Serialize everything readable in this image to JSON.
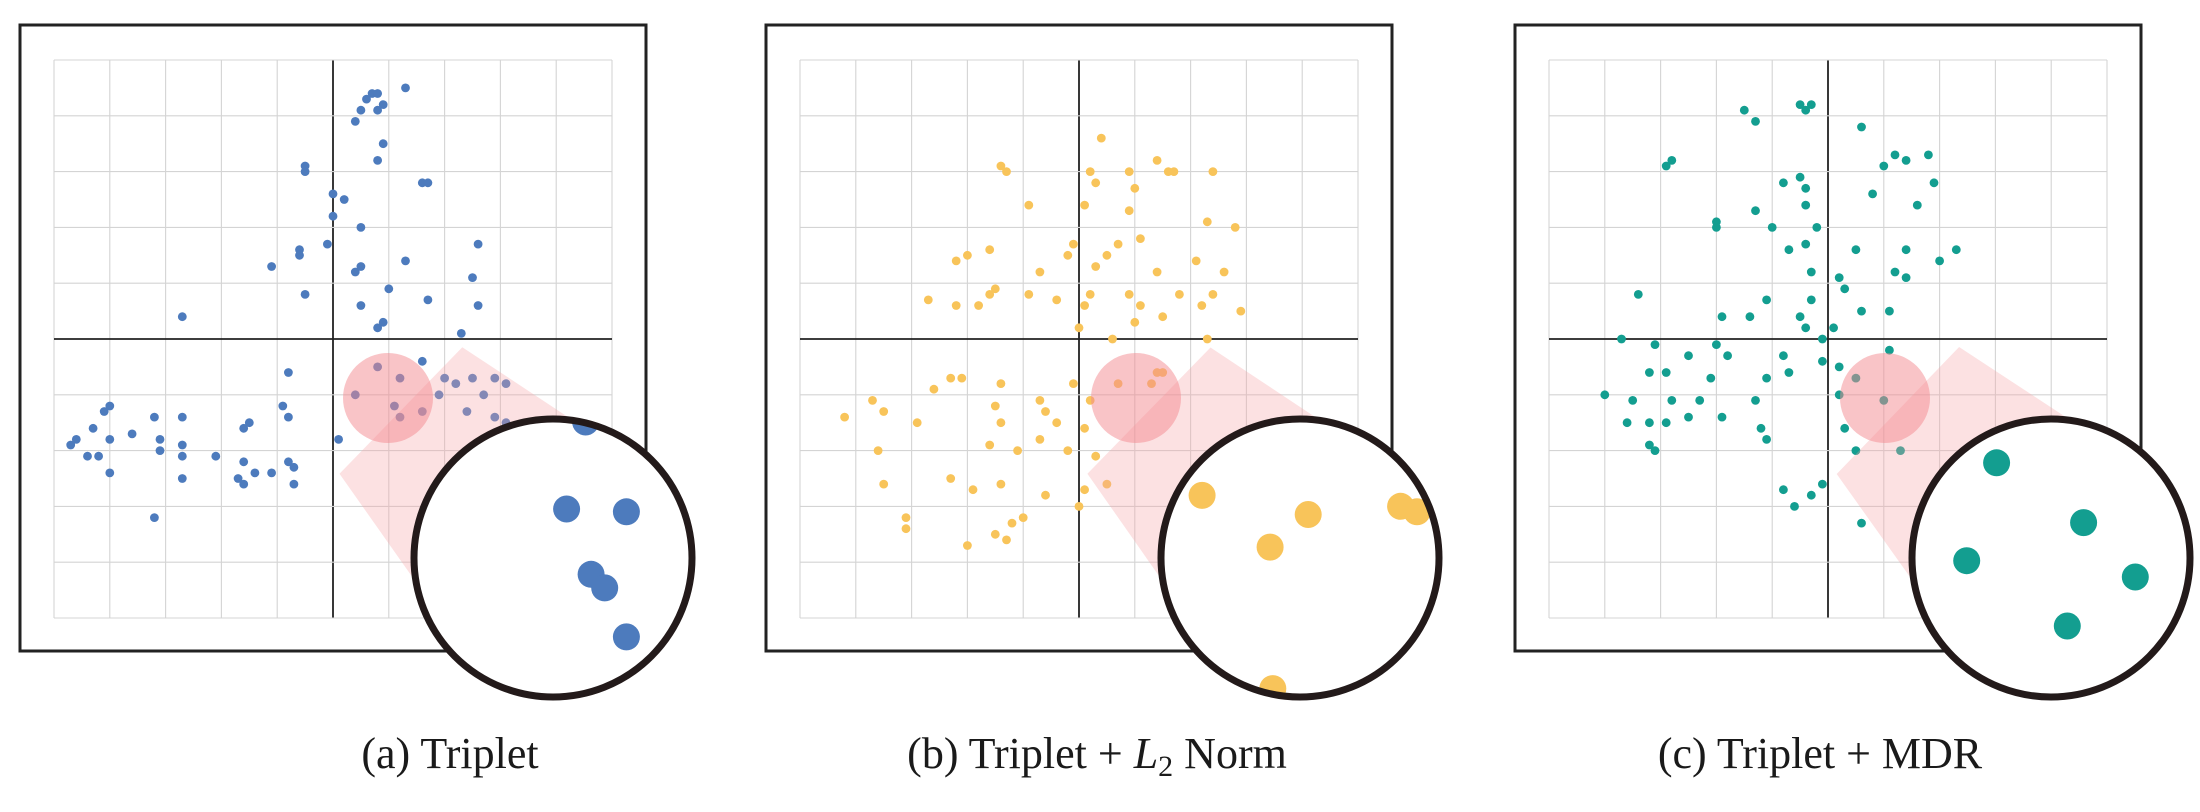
{
  "chart_data": [
    {
      "type": "scatter",
      "caption": "(a) Triplet",
      "caption_parts": [
        "(a) Triplet"
      ],
      "xlim": [
        -5,
        5
      ],
      "ylim": [
        -5,
        5
      ],
      "grid": true,
      "color": "#4d7bbd",
      "zoom_inset": true,
      "points": [
        [
          0.6,
          4.3
        ],
        [
          0.7,
          4.4
        ],
        [
          0.8,
          4.4
        ],
        [
          0.5,
          4.1
        ],
        [
          1.3,
          4.5
        ],
        [
          0.9,
          4.2
        ],
        [
          0.8,
          4.1
        ],
        [
          0.4,
          3.9
        ],
        [
          0.9,
          3.5
        ],
        [
          0.8,
          3.2
        ],
        [
          -0.5,
          3.0
        ],
        [
          -0.5,
          3.1
        ],
        [
          1.6,
          2.8
        ],
        [
          1.7,
          2.8
        ],
        [
          0,
          2.6
        ],
        [
          0.2,
          2.5
        ],
        [
          0,
          2.2
        ],
        [
          0.5,
          2.0
        ],
        [
          -0.6,
          1.6
        ],
        [
          -0.1,
          1.7
        ],
        [
          1.3,
          1.4
        ],
        [
          2.6,
          1.7
        ],
        [
          -1.1,
          1.3
        ],
        [
          0.4,
          1.2
        ],
        [
          2.5,
          1.1
        ],
        [
          0.5,
          1.3
        ],
        [
          -0.5,
          0.8
        ],
        [
          -0.6,
          1.5
        ],
        [
          1.0,
          0.9
        ],
        [
          1.7,
          0.7
        ],
        [
          0.5,
          0.6
        ],
        [
          2.6,
          0.6
        ],
        [
          -2.7,
          0.4
        ],
        [
          0.8,
          0.2
        ],
        [
          2.3,
          0.1
        ],
        [
          0.9,
          0.3
        ],
        [
          0.8,
          -0.5
        ],
        [
          1.6,
          -0.4
        ],
        [
          -0.8,
          -0.6
        ],
        [
          2.0,
          -0.7
        ],
        [
          2.2,
          -0.8
        ],
        [
          2.5,
          -0.7
        ],
        [
          2.9,
          -0.7
        ],
        [
          3.1,
          -0.8
        ],
        [
          1.2,
          -0.7
        ],
        [
          1.9,
          -1.0
        ],
        [
          0.4,
          -1.0
        ],
        [
          2.7,
          -1.0
        ],
        [
          1.1,
          -1.2
        ],
        [
          2.4,
          -1.3
        ],
        [
          1.6,
          -1.3
        ],
        [
          1.2,
          -1.4
        ],
        [
          2.9,
          -1.4
        ],
        [
          3.1,
          -1.5
        ],
        [
          -0.9,
          -1.2
        ],
        [
          -0.8,
          -1.4
        ],
        [
          0.1,
          -1.8
        ],
        [
          -4.0,
          -1.2
        ],
        [
          -4.1,
          -1.3
        ],
        [
          -4.3,
          -1.6
        ],
        [
          -3.2,
          -1.4
        ],
        [
          -2.7,
          -1.4
        ],
        [
          -1.5,
          -1.5
        ],
        [
          -1.6,
          -1.6
        ],
        [
          -3.6,
          -1.7
        ],
        [
          -4.0,
          -1.8
        ],
        [
          -3.1,
          -1.8
        ],
        [
          -4.6,
          -1.8
        ],
        [
          -3.1,
          -2.0
        ],
        [
          -4.2,
          -2.1
        ],
        [
          -4.4,
          -2.1
        ],
        [
          -4.7,
          -1.9
        ],
        [
          -2.7,
          -1.9
        ],
        [
          -2.7,
          -2.1
        ],
        [
          -2.1,
          -2.1
        ],
        [
          -1.6,
          -2.2
        ],
        [
          -0.8,
          -2.2
        ],
        [
          -0.7,
          -2.3
        ],
        [
          -4.0,
          -2.4
        ],
        [
          -1.4,
          -2.4
        ],
        [
          -1.1,
          -2.4
        ],
        [
          -2.7,
          -2.5
        ],
        [
          -1.7,
          -2.5
        ],
        [
          -1.6,
          -2.6
        ],
        [
          -0.7,
          -2.6
        ],
        [
          -3.2,
          -3.2
        ]
      ],
      "inset_points": [
        [
          0.62,
          0.0
        ],
        [
          0.55,
          0.32
        ],
        [
          0.77,
          0.33
        ],
        [
          0.64,
          0.56
        ],
        [
          0.69,
          0.61
        ],
        [
          0.77,
          0.79
        ],
        [
          0.98,
          0.79
        ]
      ]
    },
    {
      "type": "scatter",
      "caption": "(b) Triplet + L2 Norm",
      "caption_parts": [
        "(b) Triplet + ",
        "L",
        "2",
        " Norm"
      ],
      "xlim": [
        -5,
        5
      ],
      "ylim": [
        -5,
        5
      ],
      "grid": true,
      "color": "#f8c45a",
      "zoom_inset": true,
      "points": [
        [
          0.4,
          3.6
        ],
        [
          1.4,
          3.2
        ],
        [
          -1.4,
          3.1
        ],
        [
          -1.3,
          3.0
        ],
        [
          0.2,
          3.0
        ],
        [
          0.3,
          2.8
        ],
        [
          0.9,
          3.0
        ],
        [
          1.0,
          2.7
        ],
        [
          1.6,
          3.0
        ],
        [
          1.7,
          3.0
        ],
        [
          2.4,
          3.0
        ],
        [
          -0.9,
          2.4
        ],
        [
          0.1,
          2.4
        ],
        [
          0.9,
          2.3
        ],
        [
          2.3,
          2.1
        ],
        [
          2.8,
          2.0
        ],
        [
          -0.1,
          1.7
        ],
        [
          -1.6,
          1.6
        ],
        [
          0.7,
          1.7
        ],
        [
          1.1,
          1.8
        ],
        [
          -2.0,
          1.5
        ],
        [
          -2.2,
          1.4
        ],
        [
          -0.2,
          1.5
        ],
        [
          0.5,
          1.5
        ],
        [
          2.1,
          1.4
        ],
        [
          -0.7,
          1.2
        ],
        [
          0.3,
          1.3
        ],
        [
          1.4,
          1.2
        ],
        [
          2.6,
          1.2
        ],
        [
          -1.5,
          0.9
        ],
        [
          -1.6,
          0.8
        ],
        [
          -0.9,
          0.8
        ],
        [
          0.2,
          0.8
        ],
        [
          0.9,
          0.8
        ],
        [
          1.8,
          0.8
        ],
        [
          2.4,
          0.8
        ],
        [
          -2.7,
          0.7
        ],
        [
          -2.2,
          0.6
        ],
        [
          -1.8,
          0.6
        ],
        [
          -0.4,
          0.7
        ],
        [
          0.1,
          0.6
        ],
        [
          1.1,
          0.6
        ],
        [
          2.2,
          0.6
        ],
        [
          0.0,
          0.2
        ],
        [
          0.6,
          0.0
        ],
        [
          1.0,
          0.3
        ],
        [
          2.9,
          0.5
        ],
        [
          1.5,
          0.4
        ],
        [
          2.3,
          0.0
        ],
        [
          -2.3,
          -0.7
        ],
        [
          -2.1,
          -0.7
        ],
        [
          -2.6,
          -0.9
        ],
        [
          -1.4,
          -0.8
        ],
        [
          -0.1,
          -0.8
        ],
        [
          0.7,
          -0.8
        ],
        [
          1.4,
          -0.6
        ],
        [
          1.5,
          -0.6
        ],
        [
          1.3,
          -0.8
        ],
        [
          -3.7,
          -1.1
        ],
        [
          -3.5,
          -1.3
        ],
        [
          -4.2,
          -1.4
        ],
        [
          -1.5,
          -1.2
        ],
        [
          -0.7,
          -1.1
        ],
        [
          -0.6,
          -1.3
        ],
        [
          0.2,
          -1.1
        ],
        [
          -2.9,
          -1.5
        ],
        [
          -1.4,
          -1.5
        ],
        [
          -0.4,
          -1.5
        ],
        [
          0.1,
          -1.6
        ],
        [
          -0.2,
          -2.0
        ],
        [
          0.3,
          -2.1
        ],
        [
          -3.6,
          -2.0
        ],
        [
          -1.6,
          -1.9
        ],
        [
          -1.1,
          -2.0
        ],
        [
          -0.7,
          -1.8
        ],
        [
          -3.5,
          -2.6
        ],
        [
          -1.9,
          -2.7
        ],
        [
          -1.4,
          -2.6
        ],
        [
          0.1,
          -2.7
        ],
        [
          0.5,
          -2.6
        ],
        [
          -0.6,
          -2.8
        ],
        [
          -2.3,
          -2.5
        ],
        [
          0.0,
          -3.0
        ],
        [
          -3.1,
          -3.2
        ],
        [
          -3.1,
          -3.4
        ],
        [
          -1.5,
          -3.5
        ],
        [
          -1.2,
          -3.3
        ],
        [
          -1.0,
          -3.2
        ],
        [
          -2.0,
          -3.7
        ],
        [
          -1.3,
          -3.6
        ]
      ],
      "inset_points": [
        [
          0.14,
          0.27
        ],
        [
          0.53,
          0.34
        ],
        [
          0.87,
          0.31
        ],
        [
          0.93,
          0.33
        ],
        [
          0.39,
          0.46
        ],
        [
          0.4,
          0.98
        ]
      ]
    },
    {
      "type": "scatter",
      "caption": "(c) Triplet + MDR",
      "caption_parts": [
        "(c) Triplet + MDR"
      ],
      "xlim": [
        -5,
        5
      ],
      "ylim": [
        -5,
        5
      ],
      "grid": true,
      "color": "#139e90",
      "zoom_inset": true,
      "points": [
        [
          -1.5,
          4.1
        ],
        [
          -1.3,
          3.9
        ],
        [
          -0.5,
          4.2
        ],
        [
          -0.3,
          4.2
        ],
        [
          -0.4,
          4.1
        ],
        [
          0.6,
          3.8
        ],
        [
          1.2,
          3.3
        ],
        [
          1.4,
          3.2
        ],
        [
          1.8,
          3.3
        ],
        [
          -2.8,
          3.2
        ],
        [
          -2.9,
          3.1
        ],
        [
          -0.5,
          2.9
        ],
        [
          -0.8,
          2.8
        ],
        [
          1.0,
          3.1
        ],
        [
          -0.4,
          2.7
        ],
        [
          -1.3,
          2.3
        ],
        [
          -0.4,
          2.4
        ],
        [
          -2.0,
          2.1
        ],
        [
          -2.0,
          2.0
        ],
        [
          -1.0,
          2.0
        ],
        [
          0.8,
          2.6
        ],
        [
          1.6,
          2.4
        ],
        [
          1.9,
          2.8
        ],
        [
          -0.2,
          2.0
        ],
        [
          0.5,
          1.6
        ],
        [
          -0.7,
          1.6
        ],
        [
          2.3,
          1.6
        ],
        [
          -0.4,
          1.7
        ],
        [
          1.4,
          1.6
        ],
        [
          -0.3,
          1.2
        ],
        [
          1.2,
          1.2
        ],
        [
          0.2,
          1.1
        ],
        [
          2.0,
          1.4
        ],
        [
          1.4,
          1.1
        ],
        [
          -3.4,
          0.8
        ],
        [
          -1.1,
          0.7
        ],
        [
          -0.3,
          0.7
        ],
        [
          0.3,
          0.9
        ],
        [
          -0.5,
          0.4
        ],
        [
          0.6,
          0.5
        ],
        [
          1.1,
          0.5
        ],
        [
          -1.9,
          0.4
        ],
        [
          -1.4,
          0.4
        ],
        [
          -0.4,
          0.2
        ],
        [
          0.1,
          0.2
        ],
        [
          -3.7,
          0.0
        ],
        [
          -0.1,
          0.0
        ],
        [
          1.1,
          -0.2
        ],
        [
          -3.1,
          -0.1
        ],
        [
          -2.0,
          -0.1
        ],
        [
          -1.8,
          -0.3
        ],
        [
          -0.7,
          -0.6
        ],
        [
          -0.1,
          -0.4
        ],
        [
          0.2,
          -0.5
        ],
        [
          -2.5,
          -0.3
        ],
        [
          -3.2,
          -0.6
        ],
        [
          -2.9,
          -0.6
        ],
        [
          -1.1,
          -0.7
        ],
        [
          -0.8,
          -0.3
        ],
        [
          -2.1,
          -0.7
        ],
        [
          -4.0,
          -1.0
        ],
        [
          -3.5,
          -1.1
        ],
        [
          -2.8,
          -1.1
        ],
        [
          -2.3,
          -1.1
        ],
        [
          -1.3,
          -1.1
        ],
        [
          0.5,
          -0.7
        ],
        [
          0.2,
          -1.0
        ],
        [
          1.0,
          -1.1
        ],
        [
          -3.2,
          -1.5
        ],
        [
          -3.6,
          -1.5
        ],
        [
          -2.9,
          -1.5
        ],
        [
          -2.5,
          -1.4
        ],
        [
          -1.9,
          -1.4
        ],
        [
          -1.2,
          -1.6
        ],
        [
          0.3,
          -1.6
        ],
        [
          -3.2,
          -1.9
        ],
        [
          -1.1,
          -1.8
        ],
        [
          -3.1,
          -2.0
        ],
        [
          0.5,
          -2.0
        ],
        [
          1.3,
          -2.0
        ],
        [
          -0.8,
          -2.7
        ],
        [
          -0.3,
          -2.8
        ],
        [
          -0.1,
          -2.6
        ],
        [
          -0.6,
          -3.0
        ],
        [
          0.6,
          -3.3
        ]
      ],
      "inset_points": [
        [
          0.3,
          0.15
        ],
        [
          0.62,
          0.37
        ],
        [
          0.19,
          0.51
        ],
        [
          0.81,
          0.57
        ],
        [
          0.56,
          0.75
        ]
      ]
    }
  ]
}
